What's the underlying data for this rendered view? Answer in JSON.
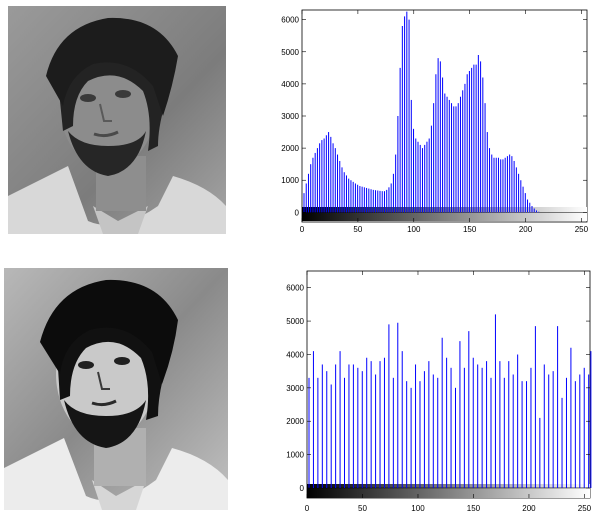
{
  "chart_data": [
    {
      "type": "bar",
      "title": "",
      "xlabel": "",
      "ylabel": "",
      "xlim": [
        0,
        255
      ],
      "ylim": [
        -300,
        6300
      ],
      "xticks": [
        "0",
        "50",
        "100",
        "150",
        "200",
        "250"
      ],
      "yticks": [
        "0",
        "1000",
        "2000",
        "3000",
        "4000",
        "5000",
        "6000"
      ],
      "colorbar": "grayscale 0-255",
      "bar_color": "#0000ff",
      "x": [
        0,
        2,
        4,
        6,
        8,
        10,
        12,
        14,
        16,
        18,
        20,
        22,
        24,
        26,
        28,
        30,
        32,
        34,
        36,
        38,
        40,
        42,
        44,
        46,
        48,
        50,
        52,
        54,
        56,
        58,
        60,
        62,
        64,
        66,
        68,
        70,
        72,
        74,
        76,
        78,
        80,
        82,
        84,
        86,
        88,
        90,
        92,
        94,
        96,
        98,
        100,
        102,
        104,
        106,
        108,
        110,
        112,
        114,
        116,
        118,
        120,
        122,
        124,
        126,
        128,
        130,
        132,
        134,
        136,
        138,
        140,
        142,
        144,
        146,
        148,
        150,
        152,
        154,
        156,
        158,
        160,
        162,
        164,
        166,
        168,
        170,
        172,
        174,
        176,
        178,
        180,
        182,
        184,
        186,
        188,
        190,
        192,
        194,
        196,
        198,
        200,
        202,
        204,
        206,
        208,
        210
      ],
      "values": [
        600,
        900,
        1200,
        1500,
        1700,
        1850,
        2000,
        2150,
        2250,
        2300,
        2400,
        2500,
        2350,
        2150,
        2000,
        1800,
        1600,
        1400,
        1250,
        1150,
        1050,
        1000,
        950,
        900,
        860,
        820,
        800,
        780,
        760,
        740,
        720,
        700,
        690,
        680,
        670,
        660,
        660,
        700,
        780,
        900,
        1200,
        1800,
        3000,
        4500,
        5800,
        6100,
        6250,
        6000,
        3500,
        2600,
        2300,
        2200,
        2100,
        2000,
        2100,
        2200,
        2300,
        2700,
        3400,
        4300,
        4800,
        4700,
        4200,
        3700,
        3600,
        3500,
        3400,
        3300,
        3300,
        3400,
        3600,
        3800,
        4000,
        4300,
        4400,
        4500,
        4600,
        4600,
        4900,
        4700,
        4200,
        3400,
        2500,
        2000,
        1800,
        1700,
        1700,
        1700,
        1650,
        1650,
        1700,
        1750,
        1800,
        1750,
        1600,
        1400,
        1200,
        1000,
        800,
        600,
        400,
        300,
        200,
        120,
        60,
        20
      ]
    },
    {
      "type": "bar",
      "title": "",
      "xlabel": "",
      "ylabel": "",
      "xlim": [
        0,
        255
      ],
      "ylim": [
        -300,
        6500
      ],
      "xticks": [
        "0",
        "50",
        "100",
        "150",
        "200",
        "250"
      ],
      "yticks": [
        "0",
        "1000",
        "2000",
        "3000",
        "4000",
        "5000",
        "6000"
      ],
      "colorbar": "grayscale 0-255",
      "bar_color": "#0000ff",
      "x": [
        0,
        4,
        8,
        12,
        16,
        20,
        24,
        28,
        32,
        36,
        40,
        44,
        48,
        52,
        56,
        60,
        64,
        68,
        72,
        76,
        80,
        84,
        88,
        92,
        96,
        100,
        104,
        108,
        112,
        116,
        120,
        124,
        128,
        132,
        136,
        140,
        144,
        148,
        152,
        156,
        160,
        164,
        168,
        172,
        176,
        180,
        184,
        188,
        192,
        196,
        200,
        204,
        208,
        212,
        216,
        220,
        224,
        228,
        232,
        236,
        240,
        244,
        248,
        252,
        254
      ],
      "values": [
        3300,
        4100,
        3300,
        3700,
        3500,
        3100,
        3700,
        4100,
        3300,
        3700,
        3700,
        3600,
        3500,
        3900,
        3800,
        3400,
        3800,
        3900,
        4900,
        3300,
        4950,
        4100,
        3200,
        3000,
        3700,
        3200,
        3500,
        3800,
        3400,
        3300,
        4500,
        3900,
        3600,
        3000,
        4400,
        3600,
        4700,
        3900,
        3700,
        3600,
        3800,
        3300,
        5200,
        3800,
        3300,
        3800,
        3400,
        4000,
        3200,
        3200,
        3600,
        4850,
        2100,
        3700,
        3400,
        3500,
        4850,
        2700,
        3300,
        4200,
        3200,
        3400,
        3600,
        3400,
        4100
      ]
    }
  ]
}
